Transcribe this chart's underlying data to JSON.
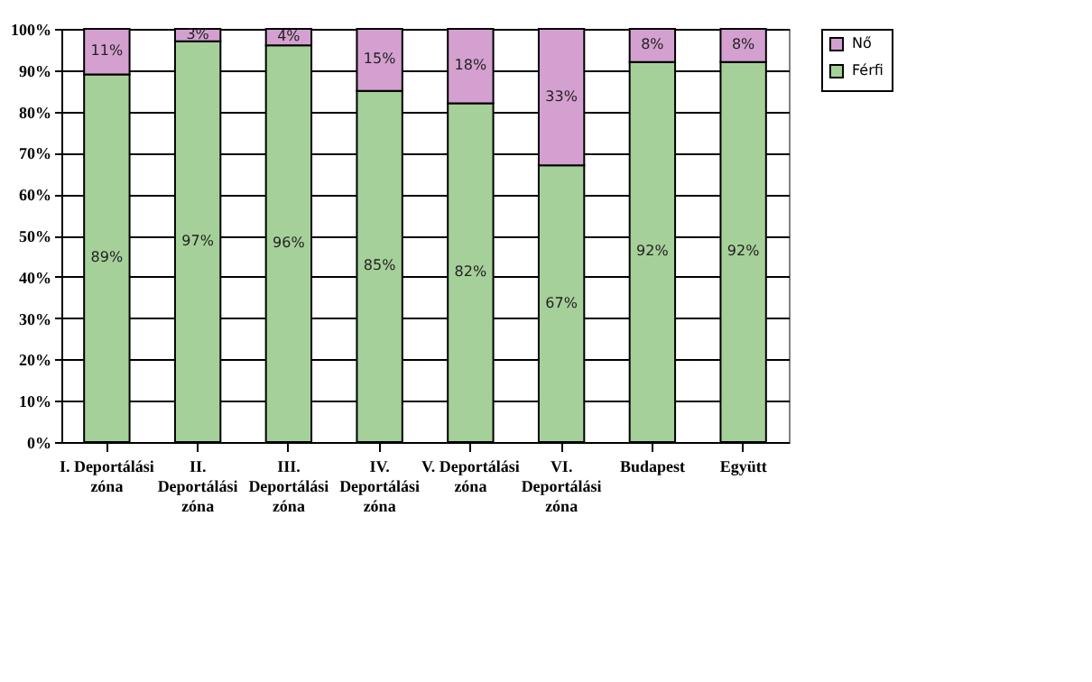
{
  "chart_data": {
    "type": "bar",
    "stacked": true,
    "categories": [
      "I. Deportálási zóna",
      "II. Deportálási zóna",
      "III. Deportálási zóna",
      "IV. Deportálási zóna",
      "V. Deportálási zóna",
      "VI. Deportálási zóna",
      "Budapest",
      "Együtt"
    ],
    "series": [
      {
        "name": "Férfi",
        "color": "#a6d09a",
        "values": [
          89,
          97,
          96,
          85,
          82,
          67,
          92,
          92
        ],
        "value_labels": [
          "89%",
          "97%",
          "96%",
          "85%",
          "82%",
          "67%",
          "92%",
          "92%"
        ]
      },
      {
        "name": "Nő",
        "color": "#d4a0d0",
        "values": [
          11,
          3,
          4,
          15,
          18,
          33,
          8,
          8
        ],
        "value_labels": [
          "11%",
          "3%",
          "4%",
          "15%",
          "18%",
          "33%",
          "8%",
          "8%"
        ]
      }
    ],
    "ylim": [
      0,
      100
    ],
    "yticks": [
      {
        "value": 0,
        "label": "0%"
      },
      {
        "value": 10,
        "label": "10%"
      },
      {
        "value": 20,
        "label": "20%"
      },
      {
        "value": 30,
        "label": "30%"
      },
      {
        "value": 40,
        "label": "40%"
      },
      {
        "value": 50,
        "label": "50%"
      },
      {
        "value": 60,
        "label": "60%"
      },
      {
        "value": 70,
        "label": "70%"
      },
      {
        "value": 80,
        "label": "80%"
      },
      {
        "value": 90,
        "label": "90%"
      },
      {
        "value": 100,
        "label": "100%"
      }
    ],
    "grid": "y",
    "legend": "right"
  }
}
